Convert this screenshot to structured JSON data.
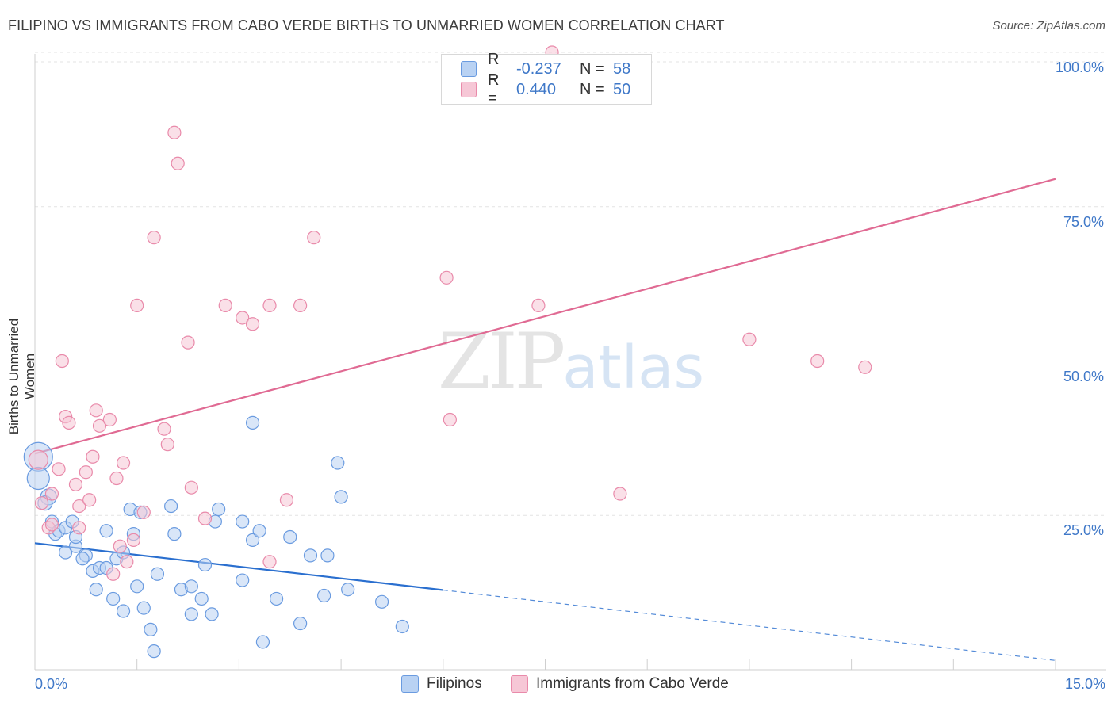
{
  "header": {
    "title": "FILIPINO VS IMMIGRANTS FROM CABO VERDE BIRTHS TO UNMARRIED WOMEN CORRELATION CHART",
    "source": "Source: ZipAtlas.com"
  },
  "watermark": {
    "zip": "ZIP",
    "atlas": "atlas"
  },
  "legend_top": {
    "rows": [
      {
        "r_label": "R =",
        "r_value": "-0.237",
        "n_label": "N =",
        "n_value": "58"
      },
      {
        "r_label": "R =",
        "r_value": "0.440",
        "n_label": "N =",
        "n_value": "50"
      }
    ]
  },
  "colors": {
    "blue_fill": "#b9d2f3",
    "blue_stroke": "#6a9be0",
    "blue_line": "#2a6fcf",
    "pink_fill": "#f6c7d6",
    "pink_stroke": "#e98aaa",
    "pink_line": "#e06a93",
    "axis_text": "#3f78c8",
    "grid": "#e3e3e3"
  },
  "chart_data": {
    "type": "scatter",
    "title": "FILIPINO VS IMMIGRANTS FROM CABO VERDE BIRTHS TO UNMARRIED WOMEN CORRELATION CHART",
    "xlabel": "",
    "ylabel": "Births to Unmarried Women",
    "xlim": [
      0,
      15
    ],
    "ylim": [
      0,
      100
    ],
    "x_tick_labels": [
      "0.0%",
      "15.0%"
    ],
    "y_tick_labels": [
      "100.0%",
      "75.0%",
      "50.0%",
      "25.0%"
    ],
    "y_ticks": [
      100,
      75,
      50,
      25
    ],
    "grid": true,
    "legend": "bottom",
    "series": [
      {
        "name": "Filipinos",
        "color": "#6a9be0",
        "trend": {
          "x0": 0,
          "y0": 20.5,
          "x1": 15,
          "y1": 1.5,
          "solid_until_x": 6.0
        },
        "points": [
          [
            0.05,
            34.5,
            18
          ],
          [
            0.05,
            31,
            14
          ],
          [
            0.2,
            28,
            10
          ],
          [
            0.15,
            27,
            9
          ],
          [
            0.25,
            24,
            8
          ],
          [
            0.3,
            22,
            8
          ],
          [
            0.35,
            22.5,
            8
          ],
          [
            0.45,
            23,
            8
          ],
          [
            0.55,
            24,
            8
          ],
          [
            0.45,
            19,
            8
          ],
          [
            0.6,
            20,
            8
          ],
          [
            0.75,
            18.5,
            8
          ],
          [
            0.7,
            18,
            8
          ],
          [
            0.85,
            16,
            8
          ],
          [
            0.95,
            16.5,
            8
          ],
          [
            1.05,
            16.5,
            8
          ],
          [
            1.2,
            18,
            8
          ],
          [
            1.3,
            19,
            8
          ],
          [
            1.05,
            22.5,
            8
          ],
          [
            1.45,
            22,
            8
          ],
          [
            1.4,
            26,
            8
          ],
          [
            1.55,
            25.5,
            8
          ],
          [
            2.0,
            26.5,
            8
          ],
          [
            2.05,
            22,
            8
          ],
          [
            0.9,
            13,
            8
          ],
          [
            1.15,
            11.5,
            8
          ],
          [
            1.3,
            9.5,
            8
          ],
          [
            1.5,
            13.5,
            8
          ],
          [
            1.6,
            10,
            8
          ],
          [
            1.7,
            6.5,
            8
          ],
          [
            1.75,
            3,
            8
          ],
          [
            1.8,
            15.5,
            8
          ],
          [
            2.15,
            13,
            8
          ],
          [
            2.3,
            9,
            8
          ],
          [
            2.3,
            13.5,
            8
          ],
          [
            2.45,
            11.5,
            8
          ],
          [
            2.5,
            17,
            8
          ],
          [
            2.6,
            9,
            8
          ],
          [
            2.65,
            24,
            8
          ],
          [
            2.7,
            26,
            8
          ],
          [
            3.05,
            14.5,
            8
          ],
          [
            3.05,
            24,
            8
          ],
          [
            3.2,
            21,
            8
          ],
          [
            3.3,
            22.5,
            8
          ],
          [
            3.35,
            4.5,
            8
          ],
          [
            3.2,
            40,
            8
          ],
          [
            3.55,
            11.5,
            8
          ],
          [
            3.75,
            21.5,
            8
          ],
          [
            3.9,
            7.5,
            8
          ],
          [
            4.05,
            18.5,
            8
          ],
          [
            4.25,
            12,
            8
          ],
          [
            4.3,
            18.5,
            8
          ],
          [
            4.5,
            28,
            8
          ],
          [
            4.45,
            33.5,
            8
          ],
          [
            4.6,
            13,
            8
          ],
          [
            5.1,
            11,
            8
          ],
          [
            5.4,
            7,
            8
          ],
          [
            0.6,
            21.5,
            8
          ]
        ]
      },
      {
        "name": "Immigrants from Cabo Verde",
        "color": "#e98aaa",
        "trend": {
          "x0": 0,
          "y0": 35,
          "x1": 15,
          "y1": 79.5
        },
        "points": [
          [
            0.05,
            34,
            12
          ],
          [
            0.1,
            27,
            8
          ],
          [
            0.2,
            23,
            8
          ],
          [
            0.25,
            28.5,
            8
          ],
          [
            0.35,
            32.5,
            8
          ],
          [
            0.4,
            50,
            8
          ],
          [
            0.45,
            41,
            8
          ],
          [
            0.5,
            40,
            8
          ],
          [
            0.6,
            30,
            8
          ],
          [
            0.65,
            26.5,
            8
          ],
          [
            0.75,
            32,
            8
          ],
          [
            0.8,
            27.5,
            8
          ],
          [
            0.85,
            34.5,
            8
          ],
          [
            0.9,
            42,
            8
          ],
          [
            0.95,
            39.5,
            8
          ],
          [
            1.1,
            40.5,
            8
          ],
          [
            1.15,
            15.5,
            8
          ],
          [
            1.2,
            31,
            8
          ],
          [
            1.25,
            20,
            8
          ],
          [
            1.3,
            33.5,
            8
          ],
          [
            1.35,
            17.5,
            8
          ],
          [
            1.5,
            59,
            8
          ],
          [
            1.6,
            25.5,
            8
          ],
          [
            1.75,
            70,
            8
          ],
          [
            1.9,
            39,
            8
          ],
          [
            1.95,
            36.5,
            8
          ],
          [
            2.05,
            87,
            8
          ],
          [
            2.1,
            82,
            8
          ],
          [
            2.25,
            53,
            8
          ],
          [
            2.3,
            29.5,
            8
          ],
          [
            2.5,
            24.5,
            8
          ],
          [
            2.8,
            59,
            8
          ],
          [
            3.05,
            57,
            8
          ],
          [
            3.2,
            56,
            8
          ],
          [
            3.45,
            59,
            8
          ],
          [
            3.45,
            17.5,
            8
          ],
          [
            3.7,
            27.5,
            8
          ],
          [
            3.9,
            59,
            8
          ],
          [
            4.1,
            70,
            8
          ],
          [
            6.05,
            63.5,
            8
          ],
          [
            6.1,
            40.5,
            8
          ],
          [
            7.4,
            59,
            8
          ],
          [
            7.6,
            100,
            8
          ],
          [
            8.6,
            28.5,
            8
          ],
          [
            10.5,
            53.5,
            8
          ],
          [
            11.5,
            50,
            8
          ],
          [
            12.2,
            49,
            8
          ],
          [
            0.25,
            23.5,
            8
          ],
          [
            0.65,
            23,
            8
          ],
          [
            1.45,
            21,
            8
          ]
        ]
      }
    ]
  }
}
